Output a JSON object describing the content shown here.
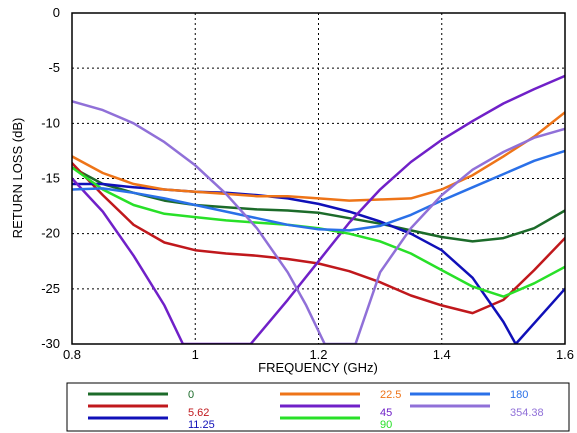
{
  "chart_data": {
    "type": "line",
    "xlabel": "FREQUENCY (GHz)",
    "ylabel": "RETURN LOSS  (dB)",
    "xlim": [
      0.8,
      1.6
    ],
    "ylim": [
      -30,
      0
    ],
    "xticks": [
      "0.8",
      "1",
      "1.2",
      "1.4",
      "1.6"
    ],
    "yticks": [
      "0",
      "-5",
      "-10",
      "-15",
      "-20",
      "-25",
      "-30"
    ],
    "grid": "dotted, every tick",
    "legend_placement": "bottom, below plot",
    "series": [
      {
        "name": "0",
        "color": "#1c6b2a",
        "x": [
          0.8,
          0.85,
          0.9,
          0.95,
          1.0,
          1.05,
          1.1,
          1.15,
          1.2,
          1.25,
          1.3,
          1.35,
          1.4,
          1.45,
          1.5,
          1.55,
          1.6
        ],
        "y": [
          -14,
          -15.5,
          -16.3,
          -17,
          -17.4,
          -17.6,
          -17.8,
          -17.9,
          -18.1,
          -18.6,
          -19.1,
          -19.7,
          -20.3,
          -20.7,
          -20.4,
          -19.5,
          -17.9
        ]
      },
      {
        "name": "5.62",
        "color": "#c0181c",
        "x": [
          0.8,
          0.85,
          0.9,
          0.95,
          1.0,
          1.05,
          1.1,
          1.15,
          1.2,
          1.25,
          1.3,
          1.35,
          1.4,
          1.45,
          1.5,
          1.55,
          1.6
        ],
        "y": [
          -13.6,
          -16.5,
          -19.2,
          -20.8,
          -21.5,
          -21.8,
          -22,
          -22.3,
          -22.7,
          -23.4,
          -24.4,
          -25.6,
          -26.5,
          -27.2,
          -26,
          -23.3,
          -20.4
        ]
      },
      {
        "name": "11.25",
        "color": "#1010b8",
        "x": [
          0.8,
          0.85,
          0.9,
          0.95,
          1.0,
          1.05,
          1.1,
          1.15,
          1.2,
          1.25,
          1.3,
          1.35,
          1.4,
          1.45,
          1.5,
          1.52,
          1.6
        ],
        "y": [
          -15.5,
          -15.5,
          -15.8,
          -16,
          -16.2,
          -16.3,
          -16.5,
          -16.8,
          -17.3,
          -18,
          -18.9,
          -20,
          -21.5,
          -24,
          -28,
          -30,
          -25
        ]
      },
      {
        "name": "22.5",
        "color": "#ee7418",
        "x": [
          0.8,
          0.85,
          0.9,
          0.95,
          1.0,
          1.05,
          1.1,
          1.15,
          1.2,
          1.25,
          1.3,
          1.35,
          1.4,
          1.45,
          1.5,
          1.55,
          1.6
        ],
        "y": [
          -13,
          -14.5,
          -15.5,
          -16,
          -16.2,
          -16.4,
          -16.6,
          -16.6,
          -16.8,
          -17,
          -16.9,
          -16.8,
          -16,
          -14.7,
          -13,
          -11.2,
          -9
        ]
      },
      {
        "name": "45",
        "color": "#7020c8",
        "x": [
          0.8,
          0.85,
          0.9,
          0.95,
          0.98,
          1.09,
          1.15,
          1.2,
          1.25,
          1.3,
          1.35,
          1.4,
          1.45,
          1.5,
          1.55,
          1.6
        ],
        "y": [
          -15,
          -18,
          -22,
          -26.5,
          -30,
          -30,
          -26,
          -22.5,
          -19,
          -16,
          -13.5,
          -11.5,
          -9.8,
          -8.2,
          -6.9,
          -5.7
        ]
      },
      {
        "name": "90",
        "color": "#28e028",
        "x": [
          0.8,
          0.85,
          0.9,
          0.95,
          1.0,
          1.05,
          1.1,
          1.15,
          1.2,
          1.25,
          1.3,
          1.35,
          1.4,
          1.45,
          1.5,
          1.55,
          1.6
        ],
        "y": [
          -14,
          -16,
          -17.4,
          -18.2,
          -18.5,
          -18.8,
          -19,
          -19.2,
          -19.5,
          -20,
          -20.7,
          -21.8,
          -23.3,
          -24.8,
          -25.7,
          -24.5,
          -23
        ]
      },
      {
        "name": "180",
        "color": "#2a70e8",
        "x": [
          0.8,
          0.85,
          0.9,
          0.95,
          1.0,
          1.05,
          1.1,
          1.15,
          1.2,
          1.25,
          1.3,
          1.35,
          1.4,
          1.45,
          1.5,
          1.55,
          1.6
        ],
        "y": [
          -16,
          -15.9,
          -16.3,
          -16.8,
          -17.4,
          -18,
          -18.6,
          -19.2,
          -19.6,
          -19.7,
          -19.3,
          -18.3,
          -17,
          -15.8,
          -14.6,
          -13.4,
          -12.5
        ]
      },
      {
        "name": "354.38",
        "color": "#9070d8",
        "x": [
          0.8,
          0.85,
          0.9,
          0.95,
          1.0,
          1.05,
          1.1,
          1.15,
          1.18,
          1.21,
          1.26,
          1.3,
          1.35,
          1.4,
          1.45,
          1.5,
          1.55,
          1.6
        ],
        "y": [
          -8,
          -8.8,
          -10,
          -11.7,
          -13.8,
          -16.4,
          -19.5,
          -23.5,
          -26.5,
          -30,
          -30,
          -23.5,
          -19.5,
          -16.5,
          -14.2,
          -12.6,
          -11.3,
          -10.5
        ]
      }
    ]
  }
}
